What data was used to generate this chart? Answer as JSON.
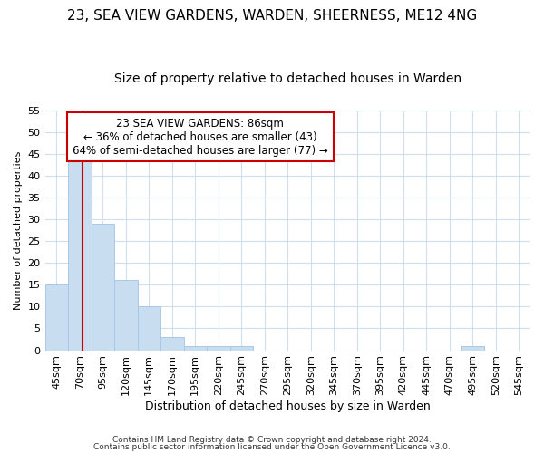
{
  "title1": "23, SEA VIEW GARDENS, WARDEN, SHEERNESS, ME12 4NG",
  "title2": "Size of property relative to detached houses in Warden",
  "xlabel": "Distribution of detached houses by size in Warden",
  "ylabel": "Number of detached properties",
  "bar_color": "#c8ddf0",
  "bar_edge_color": "#a8c8e8",
  "categories": [
    "45sqm",
    "70sqm",
    "95sqm",
    "120sqm",
    "145sqm",
    "170sqm",
    "195sqm",
    "220sqm",
    "245sqm",
    "270sqm",
    "295sqm",
    "320sqm",
    "345sqm",
    "370sqm",
    "395sqm",
    "420sqm",
    "445sqm",
    "470sqm",
    "495sqm",
    "520sqm",
    "545sqm"
  ],
  "values": [
    15,
    44,
    29,
    16,
    10,
    3,
    1,
    1,
    1,
    0,
    0,
    0,
    0,
    0,
    0,
    0,
    0,
    0,
    1,
    0,
    0
  ],
  "ylim": [
    0,
    55
  ],
  "yticks": [
    0,
    5,
    10,
    15,
    20,
    25,
    30,
    35,
    40,
    45,
    50,
    55
  ],
  "annotation_text": "23 SEA VIEW GARDENS: 86sqm\n← 36% of detached houses are smaller (43)\n64% of semi-detached houses are larger (77) →",
  "annotation_box_color": "#ffffff",
  "annotation_box_edge_color": "#cc0000",
  "red_line_color": "#cc0000",
  "footer1": "Contains HM Land Registry data © Crown copyright and database right 2024.",
  "footer2": "Contains public sector information licensed under the Open Government Licence v3.0.",
  "background_color": "#ffffff",
  "grid_color": "#d0dff0",
  "title1_fontsize": 11,
  "title2_fontsize": 10,
  "xlabel_fontsize": 9,
  "ylabel_fontsize": 8,
  "tick_fontsize": 8,
  "footer_fontsize": 6.5
}
